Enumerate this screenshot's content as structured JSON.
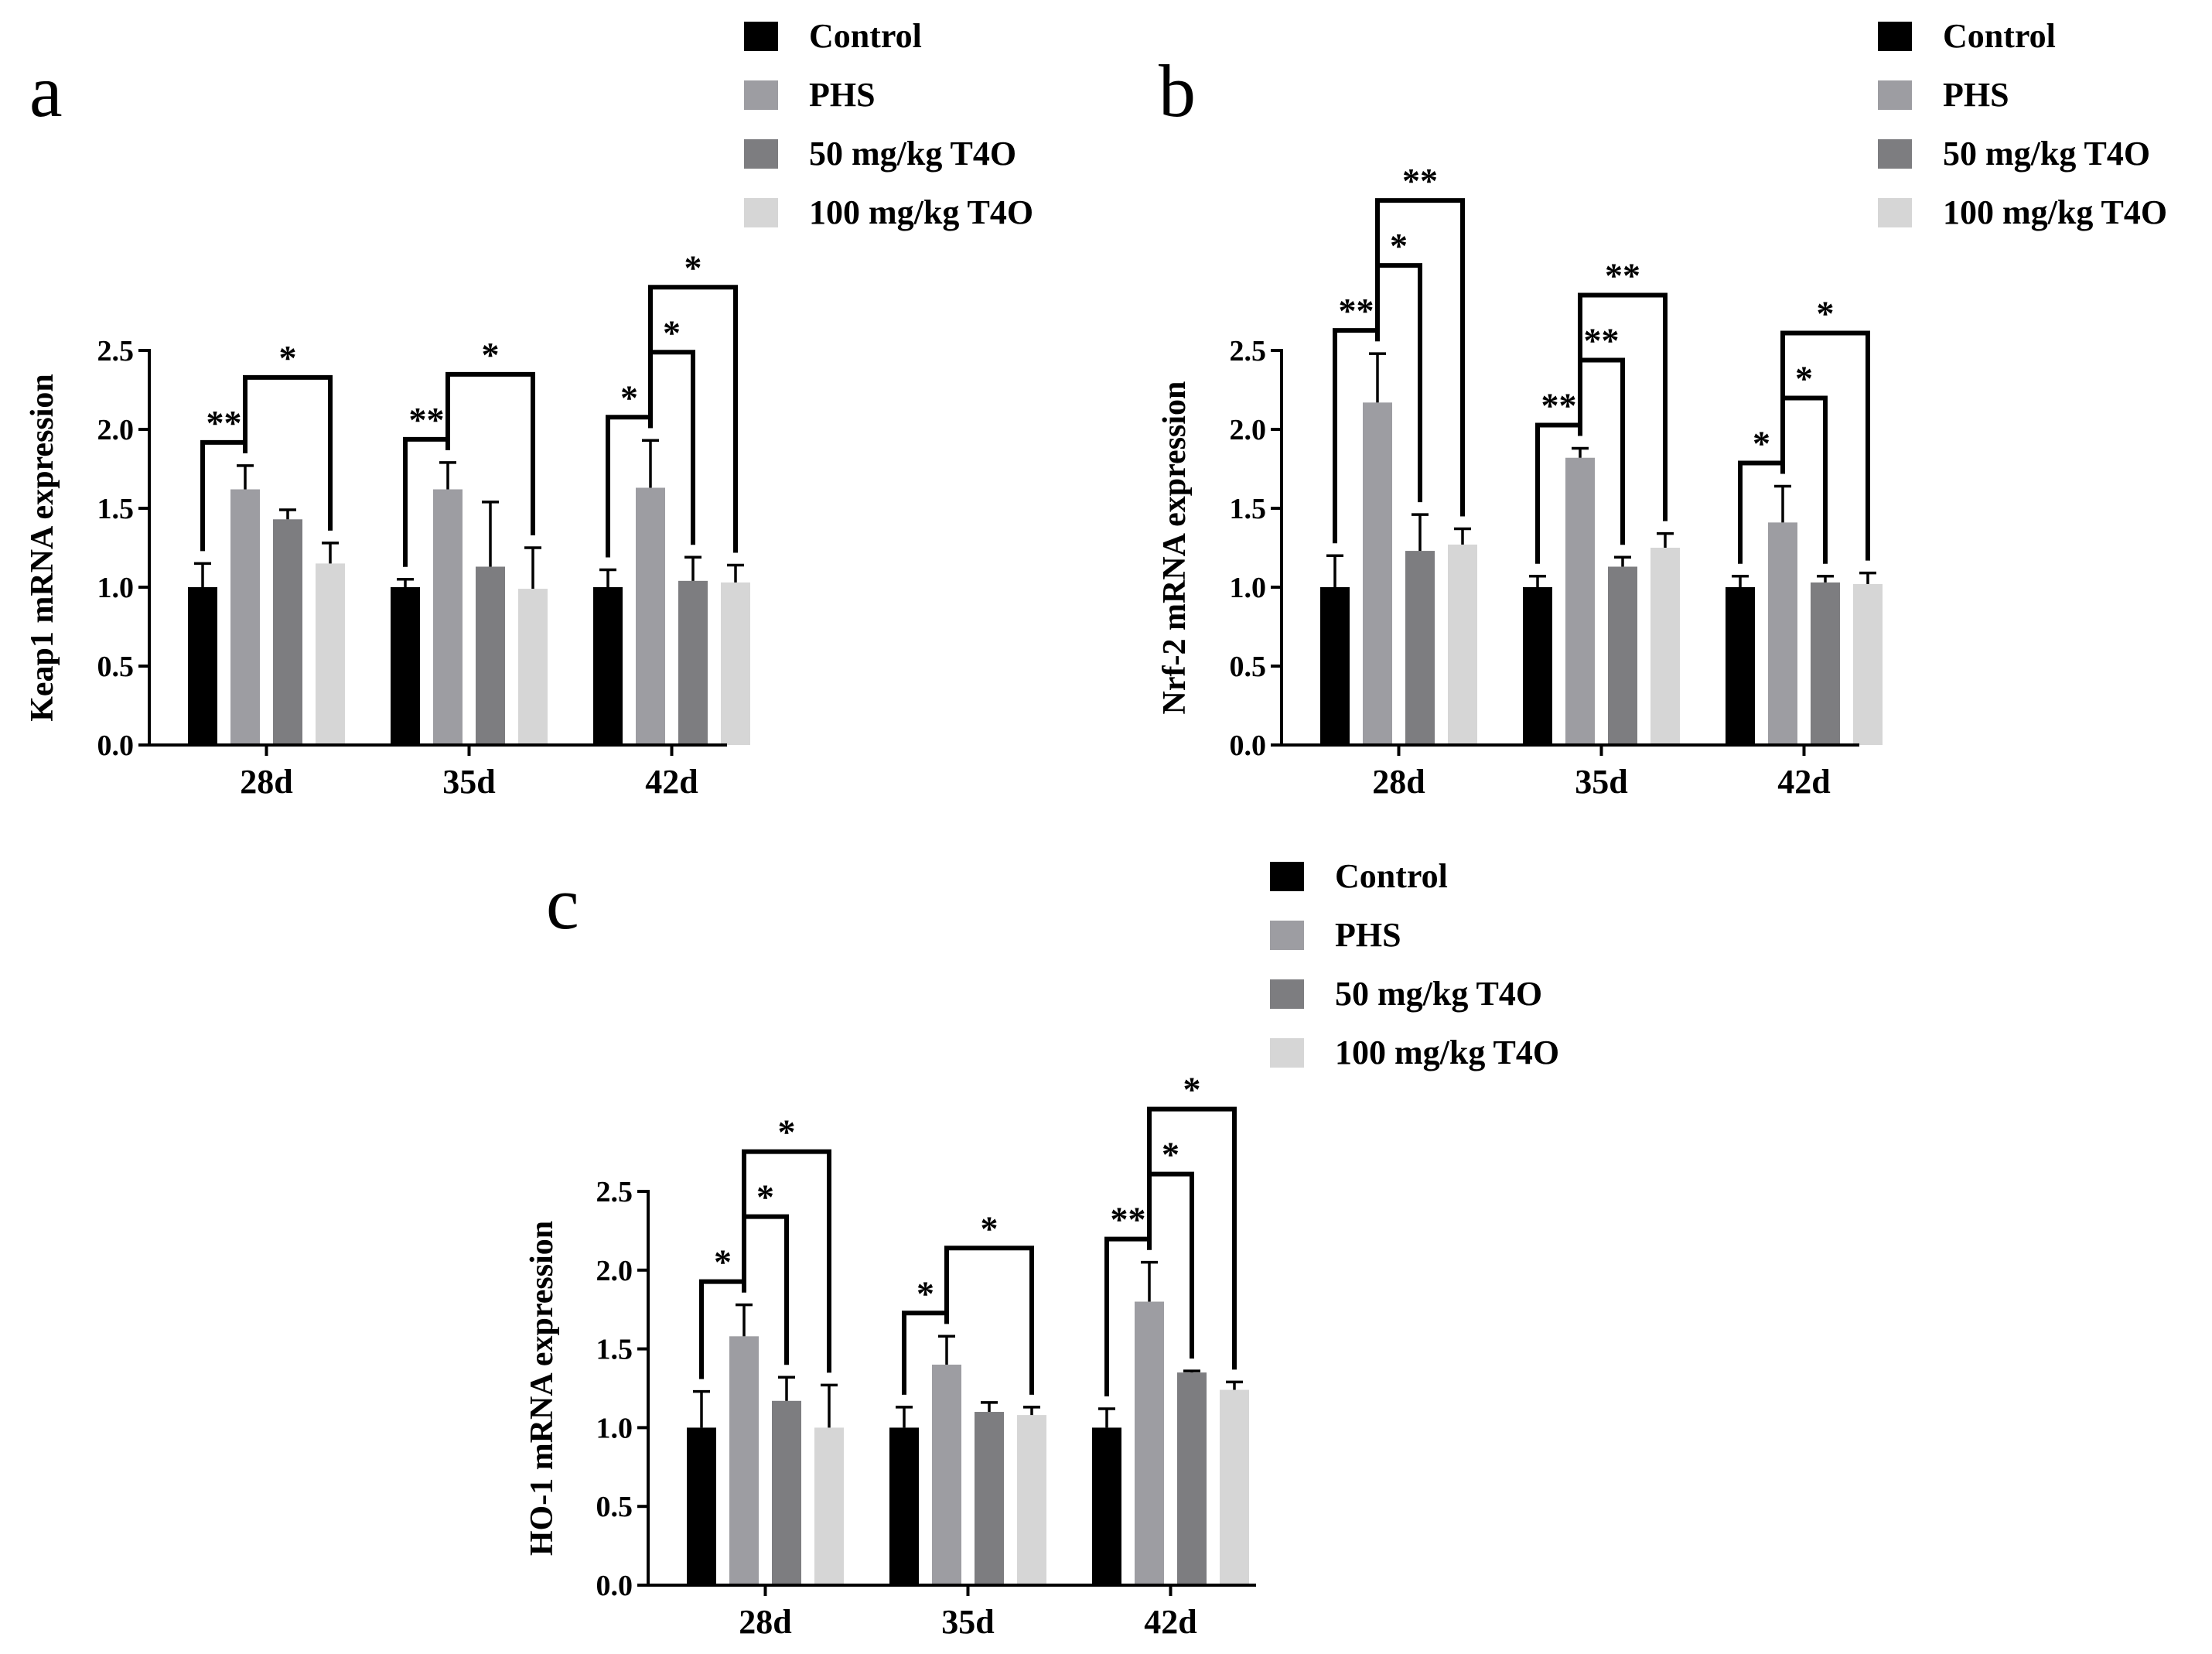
{
  "figure": {
    "legend": [
      {
        "label": "Control",
        "color": "#000000"
      },
      {
        "label": "PHS",
        "color": "#9d9da2"
      },
      {
        "label": "50 mg/kg T4O",
        "color": "#7d7d80"
      },
      {
        "label": "100 mg/kg T4O",
        "color": "#d6d6d6"
      }
    ]
  },
  "chart_data": [
    {
      "panel": "a",
      "type": "bar",
      "ylabel": "Keap1 mRNA expression",
      "ylim": [
        0,
        2.5
      ],
      "yticks": [
        "0.0",
        "0.5",
        "1.0",
        "1.5",
        "2.0",
        "2.5"
      ],
      "categories": [
        "28d",
        "35d",
        "42d"
      ],
      "series": [
        {
          "name": "Control",
          "values": [
            1.0,
            1.0,
            1.0
          ],
          "errors": [
            0.15,
            0.05,
            0.11
          ]
        },
        {
          "name": "PHS",
          "values": [
            1.62,
            1.62,
            1.63
          ],
          "errors": [
            0.15,
            0.17,
            0.3
          ]
        },
        {
          "name": "50 mg/kg T4O",
          "values": [
            1.43,
            1.13,
            1.04
          ],
          "errors": [
            0.06,
            0.41,
            0.15
          ]
        },
        {
          "name": "100 mg/kg T4O",
          "values": [
            1.15,
            0.99,
            1.03
          ],
          "errors": [
            0.13,
            0.26,
            0.11
          ]
        }
      ],
      "significance": [
        {
          "category": 0,
          "from": 0,
          "to": 1,
          "label": "**",
          "level": 0
        },
        {
          "category": 0,
          "from": 1,
          "to": 3,
          "label": "*",
          "level": 1
        },
        {
          "category": 1,
          "from": 0,
          "to": 1,
          "label": "**",
          "level": 0
        },
        {
          "category": 1,
          "from": 1,
          "to": 3,
          "label": "*",
          "level": 1
        },
        {
          "category": 2,
          "from": 0,
          "to": 1,
          "label": "*",
          "level": 0
        },
        {
          "category": 2,
          "from": 1,
          "to": 2,
          "label": "*",
          "level": 1
        },
        {
          "category": 2,
          "from": 1,
          "to": 3,
          "label": "*",
          "level": 2
        }
      ]
    },
    {
      "panel": "b",
      "type": "bar",
      "ylabel": "Nrf-2 mRNA expression",
      "ylim": [
        0,
        2.5
      ],
      "yticks": [
        "0.0",
        "0.5",
        "1.0",
        "1.5",
        "2.0",
        "2.5"
      ],
      "categories": [
        "28d",
        "35d",
        "42d"
      ],
      "series": [
        {
          "name": "Control",
          "values": [
            1.0,
            1.0,
            1.0
          ],
          "errors": [
            0.2,
            0.07,
            0.07
          ]
        },
        {
          "name": "PHS",
          "values": [
            2.17,
            1.82,
            1.41
          ],
          "errors": [
            0.31,
            0.06,
            0.23
          ]
        },
        {
          "name": "50 mg/kg T4O",
          "values": [
            1.23,
            1.13,
            1.03
          ],
          "errors": [
            0.23,
            0.06,
            0.04
          ]
        },
        {
          "name": "100 mg/kg T4O",
          "values": [
            1.27,
            1.25,
            1.02
          ],
          "errors": [
            0.1,
            0.09,
            0.07
          ]
        }
      ],
      "significance": [
        {
          "category": 0,
          "from": 0,
          "to": 1,
          "label": "**",
          "level": 0
        },
        {
          "category": 0,
          "from": 1,
          "to": 2,
          "label": "*",
          "level": 1
        },
        {
          "category": 0,
          "from": 1,
          "to": 3,
          "label": "**",
          "level": 2
        },
        {
          "category": 1,
          "from": 0,
          "to": 1,
          "label": "**",
          "level": 0
        },
        {
          "category": 1,
          "from": 1,
          "to": 2,
          "label": "**",
          "level": 1
        },
        {
          "category": 1,
          "from": 1,
          "to": 3,
          "label": "**",
          "level": 2
        },
        {
          "category": 2,
          "from": 0,
          "to": 1,
          "label": "*",
          "level": 0
        },
        {
          "category": 2,
          "from": 1,
          "to": 2,
          "label": "*",
          "level": 1
        },
        {
          "category": 2,
          "from": 1,
          "to": 3,
          "label": "*",
          "level": 2
        }
      ]
    },
    {
      "panel": "c",
      "type": "bar",
      "ylabel": "HO-1 mRNA expression",
      "ylim": [
        0,
        2.5
      ],
      "yticks": [
        "0.0",
        "0.5",
        "1.0",
        "1.5",
        "2.0",
        "2.5"
      ],
      "categories": [
        "28d",
        "35d",
        "42d"
      ],
      "series": [
        {
          "name": "Control",
          "values": [
            1.0,
            1.0,
            1.0
          ],
          "errors": [
            0.23,
            0.13,
            0.12
          ]
        },
        {
          "name": "PHS",
          "values": [
            1.58,
            1.4,
            1.8
          ],
          "errors": [
            0.2,
            0.18,
            0.25
          ]
        },
        {
          "name": "50 mg/kg T4O",
          "values": [
            1.17,
            1.1,
            1.35
          ],
          "errors": [
            0.15,
            0.06,
            0.01
          ]
        },
        {
          "name": "100 mg/kg T4O",
          "values": [
            1.0,
            1.08,
            1.24
          ],
          "errors": [
            0.27,
            0.05,
            0.05
          ]
        }
      ],
      "significance": [
        {
          "category": 0,
          "from": 0,
          "to": 1,
          "label": "*",
          "level": 0
        },
        {
          "category": 0,
          "from": 1,
          "to": 2,
          "label": "*",
          "level": 1
        },
        {
          "category": 0,
          "from": 1,
          "to": 3,
          "label": "*",
          "level": 2
        },
        {
          "category": 1,
          "from": 0,
          "to": 1,
          "label": "*",
          "level": 0
        },
        {
          "category": 1,
          "from": 1,
          "to": 3,
          "label": "*",
          "level": 1
        },
        {
          "category": 2,
          "from": 0,
          "to": 1,
          "label": "**",
          "level": 0
        },
        {
          "category": 2,
          "from": 1,
          "to": 2,
          "label": "*",
          "level": 1
        },
        {
          "category": 2,
          "from": 1,
          "to": 3,
          "label": "*",
          "level": 2
        }
      ]
    }
  ]
}
